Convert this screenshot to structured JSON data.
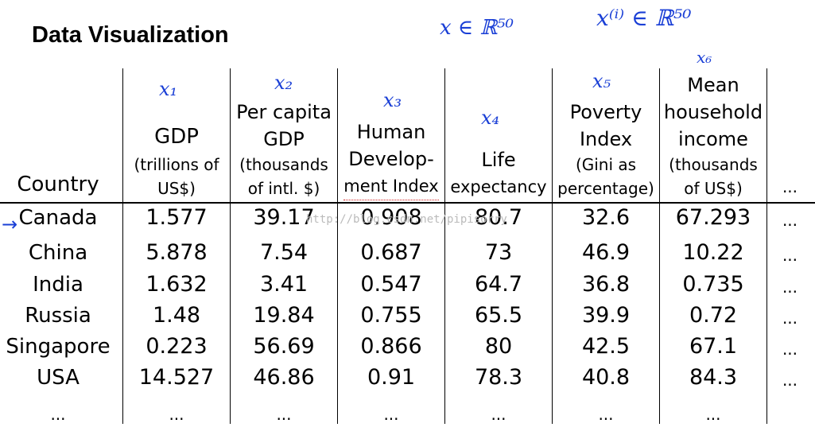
{
  "title": "Data Visualization",
  "annotations": {
    "top_left": "x ∈ ℝ⁵⁰",
    "top_right": "x⁽ⁱ⁾ ∈ ℝ⁵⁰",
    "features": [
      "x₁",
      "x₂",
      "x₃",
      "x₄",
      "x₅",
      "x₆"
    ],
    "arrow": "→"
  },
  "headers": {
    "country": "Country",
    "gdp": {
      "title": "GDP",
      "sub1": "(trillions of",
      "sub2": "US$)"
    },
    "per_capita": {
      "l1": "Per capita",
      "l2": "GDP",
      "l3": "(thousands",
      "l4": "of intl. $)"
    },
    "hdi": {
      "l1": "Human",
      "l2": "Develop-",
      "l3": "ment Index"
    },
    "life": {
      "l1": "Life",
      "l2": "expectancy"
    },
    "poverty": {
      "l1": "Poverty",
      "l2": "Index",
      "l3": "(Gini as",
      "l4": "percentage)"
    },
    "income": {
      "l1": "Mean",
      "l2": "household",
      "l3": "income",
      "l4": "(thousands",
      "l5": "of US$)"
    },
    "more": "..."
  },
  "rows": [
    [
      "Canada",
      "1.577",
      "39.17",
      "0.908",
      "80.7",
      "32.6",
      "67.293",
      "..."
    ],
    [
      "China",
      "5.878",
      "7.54",
      "0.687",
      "73",
      "46.9",
      "10.22",
      "..."
    ],
    [
      "India",
      "1.632",
      "3.41",
      "0.547",
      "64.7",
      "36.8",
      "0.735",
      "..."
    ],
    [
      "Russia",
      "1.48",
      "19.84",
      "0.755",
      "65.5",
      "39.9",
      "0.72",
      "..."
    ],
    [
      "Singapore",
      "0.223",
      "56.69",
      "0.866",
      "80",
      "42.5",
      "67.1",
      "..."
    ],
    [
      "USA",
      "14.527",
      "46.86",
      "0.91",
      "78.3",
      "40.8",
      "84.3",
      "..."
    ],
    [
      "...",
      "...",
      "...",
      "...",
      "...",
      "...",
      "...",
      ""
    ]
  ],
  "watermark": "http://blog.csdn.net/pipisorry"
}
